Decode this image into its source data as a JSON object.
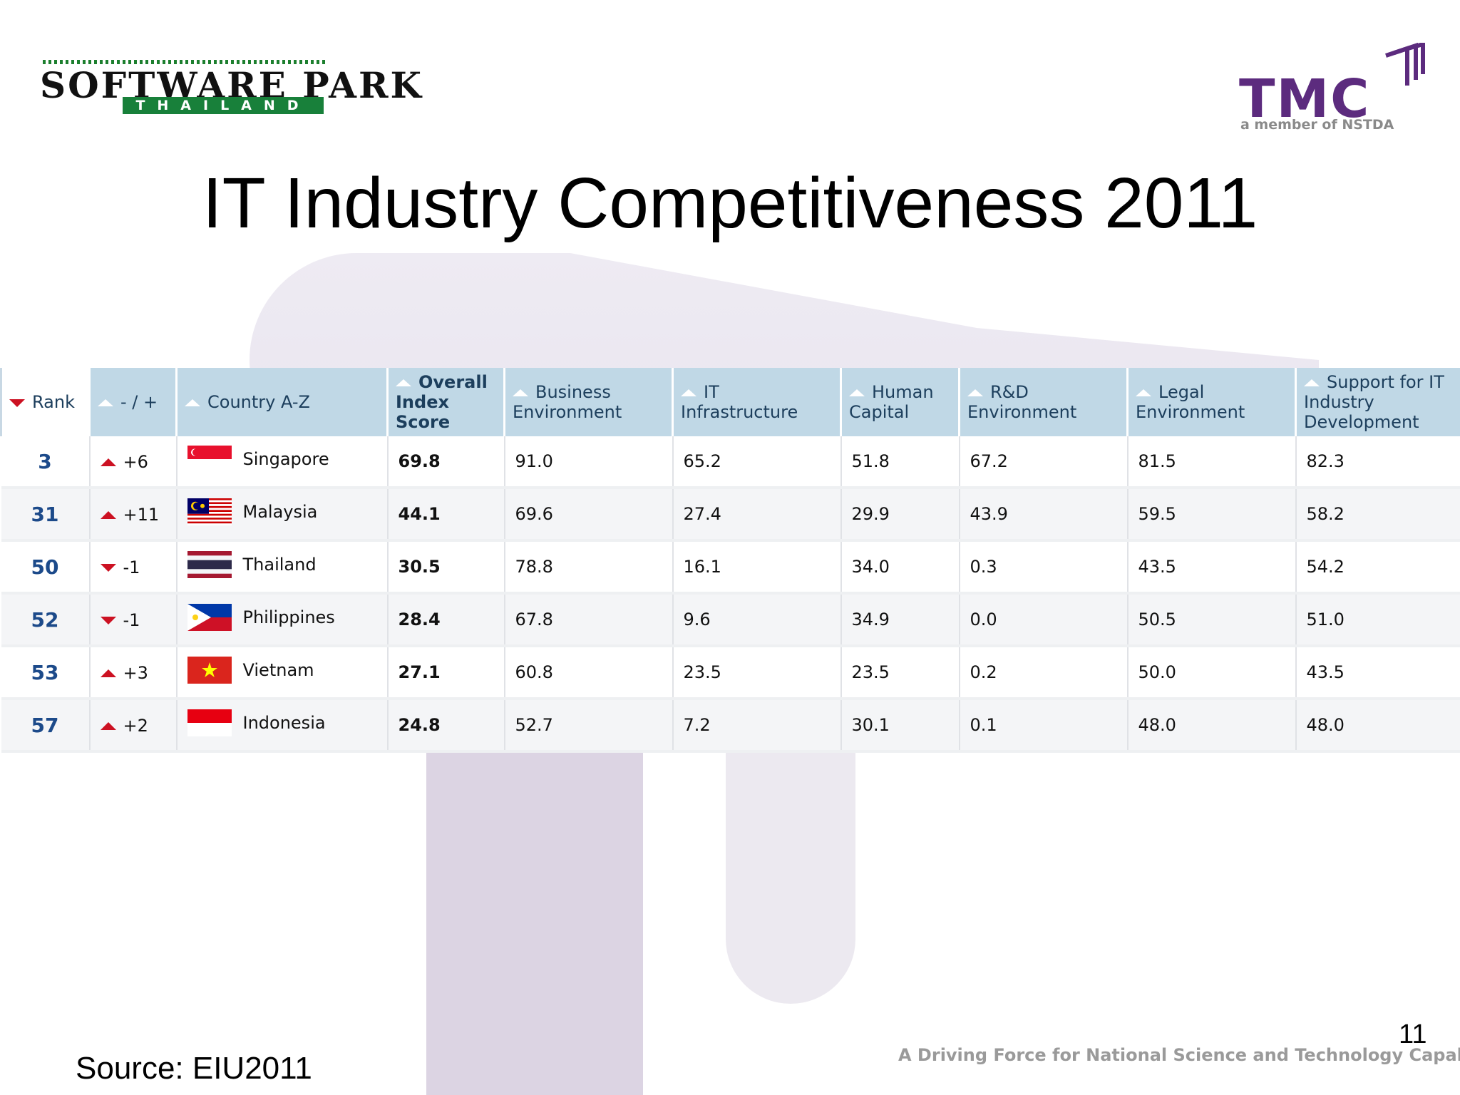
{
  "header": {
    "logo_left_word": "SOFTWARE PARK",
    "logo_left_band": "THAILAND",
    "logo_right_word": "TMC",
    "logo_right_sub": "a member of NSTDA"
  },
  "title": "IT Industry Competitiveness 2011",
  "table": {
    "columns": [
      "Rank",
      "- / +",
      "Country A-Z",
      "Overall Index Score",
      "Business Environment",
      "IT Infrastructure",
      "Human Capital",
      "R&D Environment",
      "Legal Environment",
      "Support for IT Industry Development"
    ],
    "rows": [
      {
        "rank": "3",
        "direction": "up",
        "change": "+6",
        "country": "Singapore",
        "flag": "singapore",
        "overall": "69.8",
        "business": "91.0",
        "it_infra": "65.2",
        "human": "51.8",
        "rnd": "67.2",
        "legal": "81.5",
        "support": "82.3"
      },
      {
        "rank": "31",
        "direction": "up",
        "change": "+11",
        "country": "Malaysia",
        "flag": "malaysia",
        "overall": "44.1",
        "business": "69.6",
        "it_infra": "27.4",
        "human": "29.9",
        "rnd": "43.9",
        "legal": "59.5",
        "support": "58.2"
      },
      {
        "rank": "50",
        "direction": "down",
        "change": "-1",
        "country": "Thailand",
        "flag": "thailand",
        "overall": "30.5",
        "business": "78.8",
        "it_infra": "16.1",
        "human": "34.0",
        "rnd": "0.3",
        "legal": "43.5",
        "support": "54.2"
      },
      {
        "rank": "52",
        "direction": "down",
        "change": "-1",
        "country": "Philippines",
        "flag": "philippines",
        "overall": "28.4",
        "business": "67.8",
        "it_infra": "9.6",
        "human": "34.9",
        "rnd": "0.0",
        "legal": "50.5",
        "support": "51.0"
      },
      {
        "rank": "53",
        "direction": "up",
        "change": "+3",
        "country": "Vietnam",
        "flag": "vietnam",
        "overall": "27.1",
        "business": "60.8",
        "it_infra": "23.5",
        "human": "23.5",
        "rnd": "0.2",
        "legal": "50.0",
        "support": "43.5"
      },
      {
        "rank": "57",
        "direction": "up",
        "change": "+2",
        "country": "Indonesia",
        "flag": "indonesia",
        "overall": "24.8",
        "business": "52.7",
        "it_infra": "7.2",
        "human": "30.1",
        "rnd": "0.1",
        "legal": "48.0",
        "support": "48.0"
      }
    ]
  },
  "footer": {
    "source": "Source:  EIU2011",
    "tagline": "A Driving Force for National Science and Technology Capability",
    "page_number": "11"
  },
  "colors": {
    "header_bg": "#c0d8e6",
    "rank_blue": "#1c4a8a",
    "arrow_red": "#cc1122",
    "tmc_purple": "#5c2b7e",
    "spt_green": "#18803a"
  }
}
